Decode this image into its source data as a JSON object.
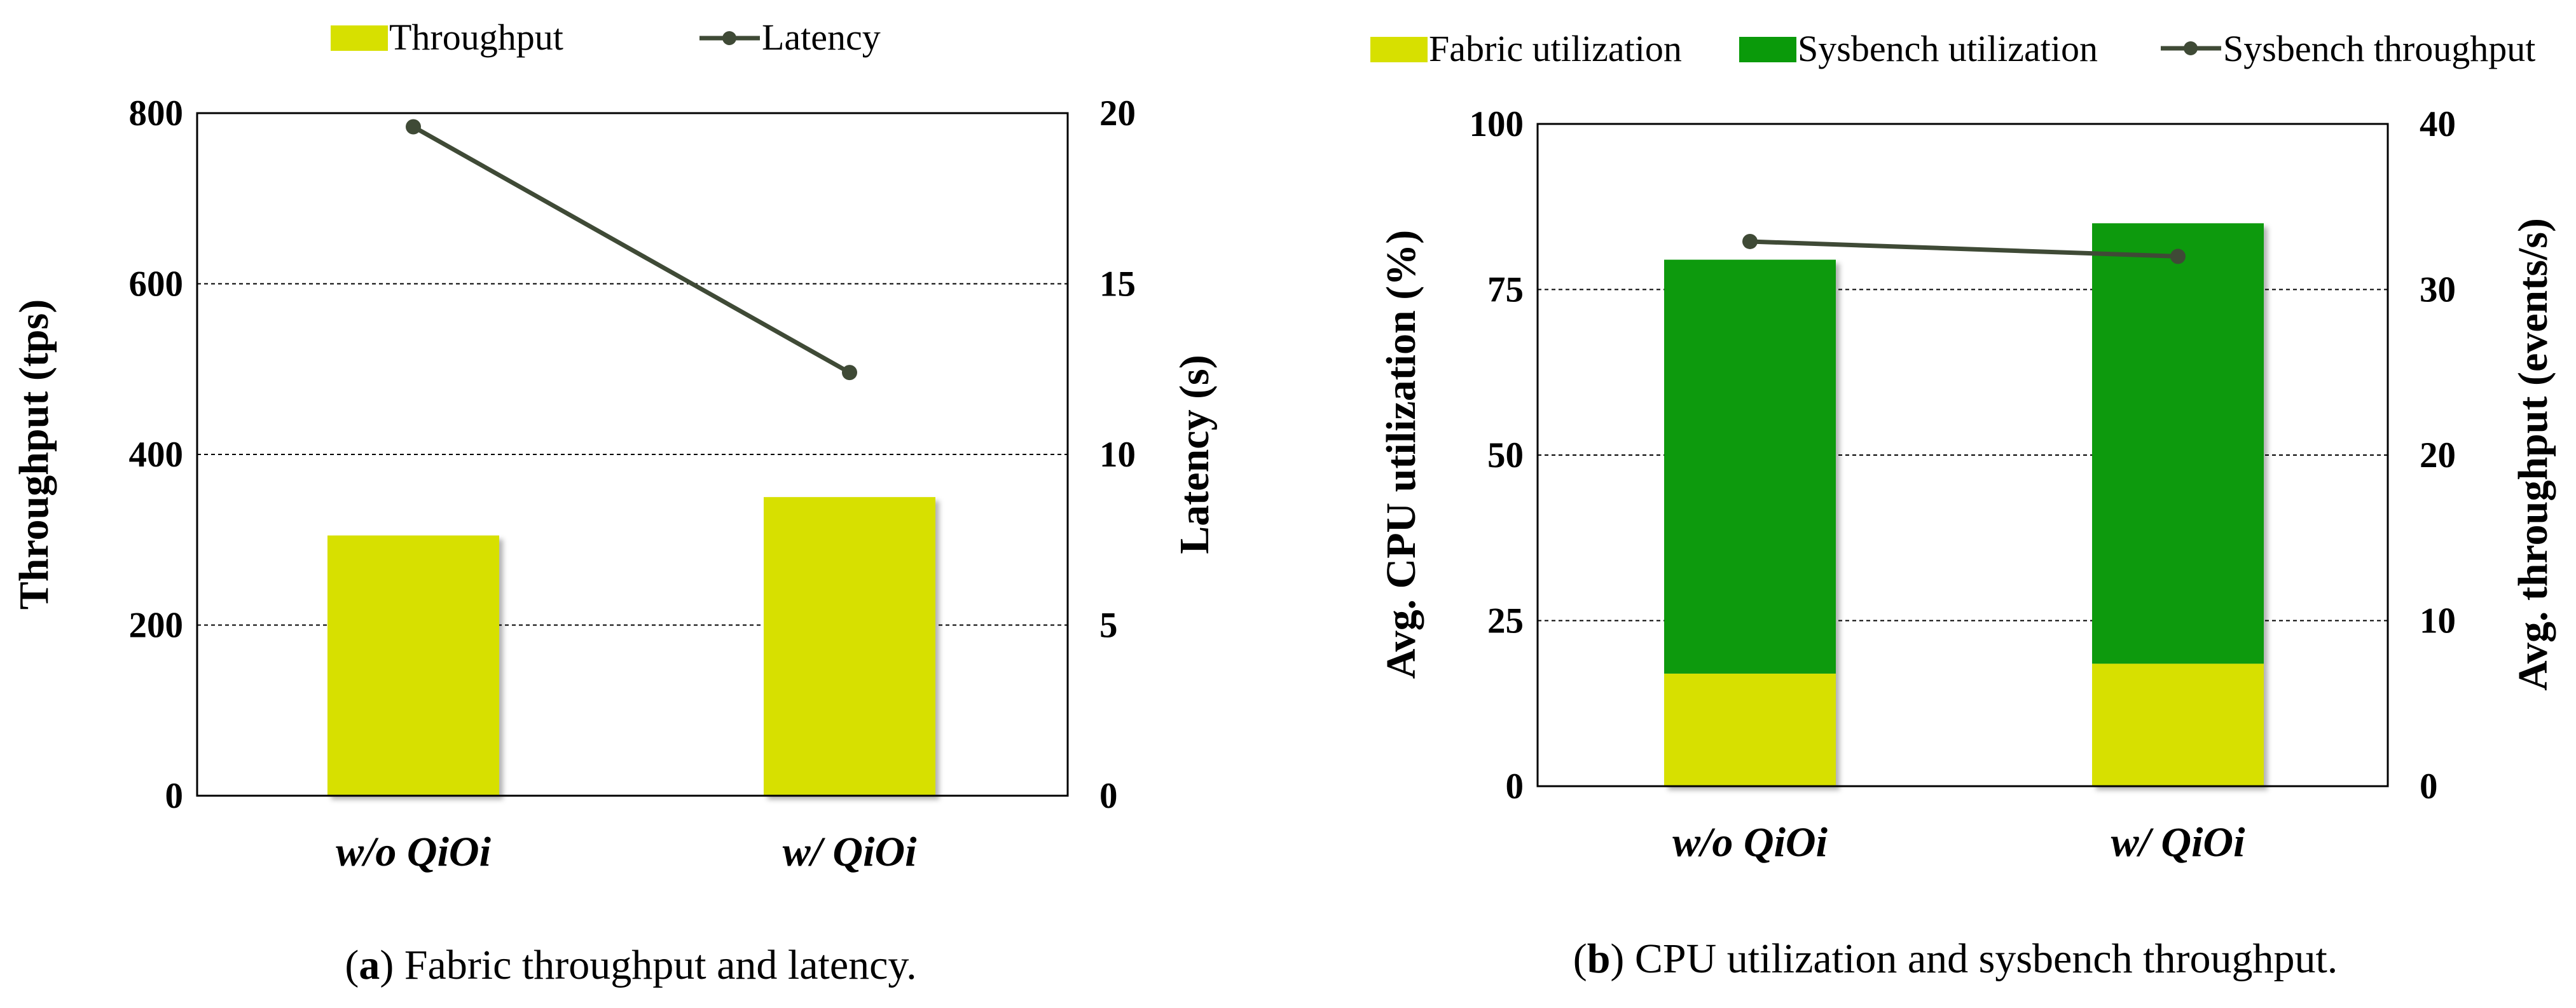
{
  "chart_data": [
    {
      "type": "bar",
      "panel_label": "a",
      "caption": "Fabric throughput and latency.",
      "categories": [
        "w/o QiOi",
        "w/ QiOi"
      ],
      "series": [
        {
          "name": "Throughput",
          "kind": "bar",
          "axis": "left",
          "values": [
            305,
            350
          ]
        },
        {
          "name": "Latency",
          "kind": "line",
          "axis": "right",
          "values": [
            19.6,
            12.4
          ]
        }
      ],
      "ylabel": "Throughput (tps)",
      "ylim": [
        0,
        800
      ],
      "yticks": [
        "0",
        "200",
        "400",
        "600",
        "800"
      ],
      "y2label": "Latency (s)",
      "y2lim": [
        0,
        20
      ],
      "y2ticks": [
        "0",
        "5",
        "10",
        "15",
        "20"
      ],
      "grid": true,
      "legend": "top"
    },
    {
      "type": "bar",
      "panel_label": "b",
      "caption": "CPU utilization and sysbench throughput.",
      "categories": [
        "w/o QiOi",
        "w/ QiOi"
      ],
      "stacked": true,
      "series": [
        {
          "name": "Fabric utilization",
          "kind": "bar",
          "axis": "left",
          "values": [
            17,
            18.5
          ]
        },
        {
          "name": "Sysbench utilization",
          "kind": "bar",
          "axis": "left",
          "values": [
            62.5,
            66.5
          ]
        },
        {
          "name": "Sysbench throughput",
          "kind": "line",
          "axis": "right",
          "values": [
            32.9,
            32.0
          ]
        }
      ],
      "ylabel": "Avg. CPU utilization (%)",
      "ylim": [
        0,
        100
      ],
      "yticks": [
        "0",
        "25",
        "50",
        "75",
        "100"
      ],
      "y2label": "Avg. throughput (events/s)",
      "y2lim": [
        0,
        40
      ],
      "y2ticks": [
        "0",
        "10",
        "20",
        "30",
        "40"
      ],
      "grid": true,
      "legend": "top"
    }
  ],
  "colors": {
    "fabric_yellow": "#d7e000",
    "sysbench_green": "#0a9a0a",
    "line": "#3f4a36"
  },
  "legend_a": {
    "throughput": "Throughput",
    "latency": "Latency"
  },
  "legend_b": {
    "fabric": "Fabric utilization",
    "sysbench": "Sysbench utilization",
    "throughput": "Sysbench throughput"
  }
}
